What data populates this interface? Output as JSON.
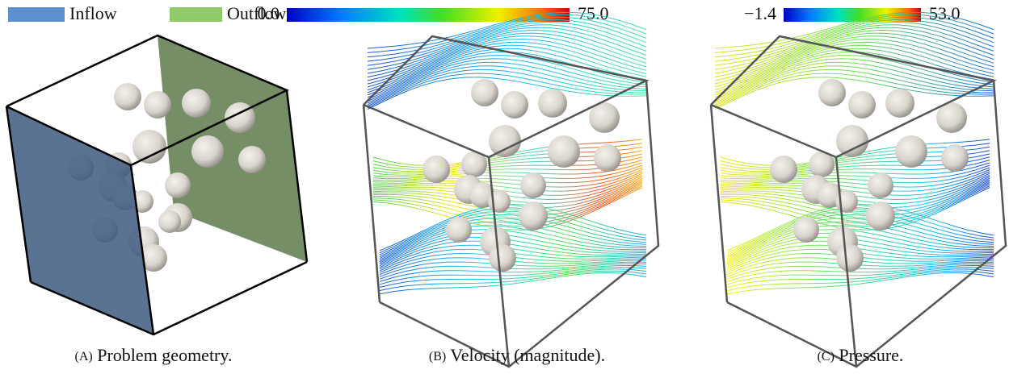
{
  "legend": {
    "items": [
      {
        "label": "Inflow",
        "color": "#5b8fcf"
      },
      {
        "label": "Outflow",
        "color": "#8ec96a"
      }
    ]
  },
  "panels": [
    {
      "caption": {
        "label": "(A)",
        "text": "Problem geometry."
      }
    },
    {
      "colorbar": {
        "min": "0.0",
        "max": "75.0"
      },
      "caption": {
        "label": "(B)",
        "text": "Velocity (magnitude)."
      }
    },
    {
      "colorbar": {
        "min": "−1.4",
        "max": "53.0"
      },
      "caption": {
        "label": "(C)",
        "text": "Pressure."
      }
    }
  ]
}
